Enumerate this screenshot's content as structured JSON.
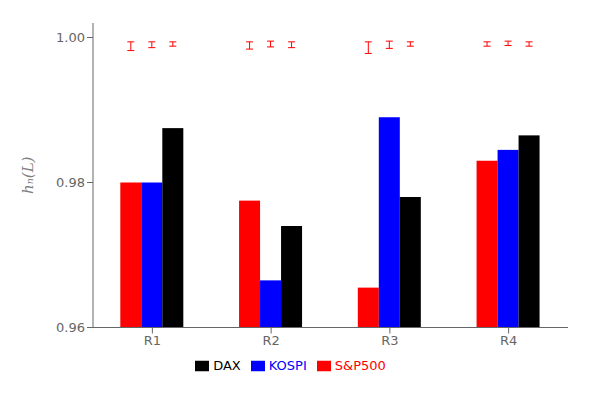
{
  "chart_data": {
    "type": "bar",
    "categories": [
      "R1",
      "R2",
      "R3",
      "R4"
    ],
    "series": [
      {
        "name": "S&P500",
        "color": "#FF0000",
        "values": [
          0.98,
          0.9775,
          0.9655,
          0.983
        ]
      },
      {
        "name": "KOSPI",
        "color": "#0000FF",
        "values": [
          0.98,
          0.9665,
          0.989,
          0.9845
        ]
      },
      {
        "name": "DAX",
        "color": "#000000",
        "values": [
          0.9875,
          0.974,
          0.978,
          0.9865
        ]
      }
    ],
    "error_bars": {
      "color": "#FF0000",
      "y": [
        [
          0.9988,
          0.9989,
          0.9986,
          0.9991
        ],
        [
          0.999,
          0.9991,
          0.999,
          0.9992
        ],
        [
          0.9991,
          0.999,
          0.9991,
          0.9991
        ]
      ],
      "yerr": [
        [
          0.0006,
          0.0005,
          0.0008,
          0.0003
        ],
        [
          0.0004,
          0.0004,
          0.0005,
          0.0003
        ],
        [
          0.0003,
          0.0004,
          0.0003,
          0.0003
        ]
      ]
    },
    "ylabel": "hₙ(L)",
    "ylim": [
      0.96,
      1.002
    ],
    "yticks": [
      0.96,
      0.98,
      {
        "value": 1.0,
        "label": "1.00"
      }
    ],
    "legend": "bottom",
    "grid": false
  }
}
